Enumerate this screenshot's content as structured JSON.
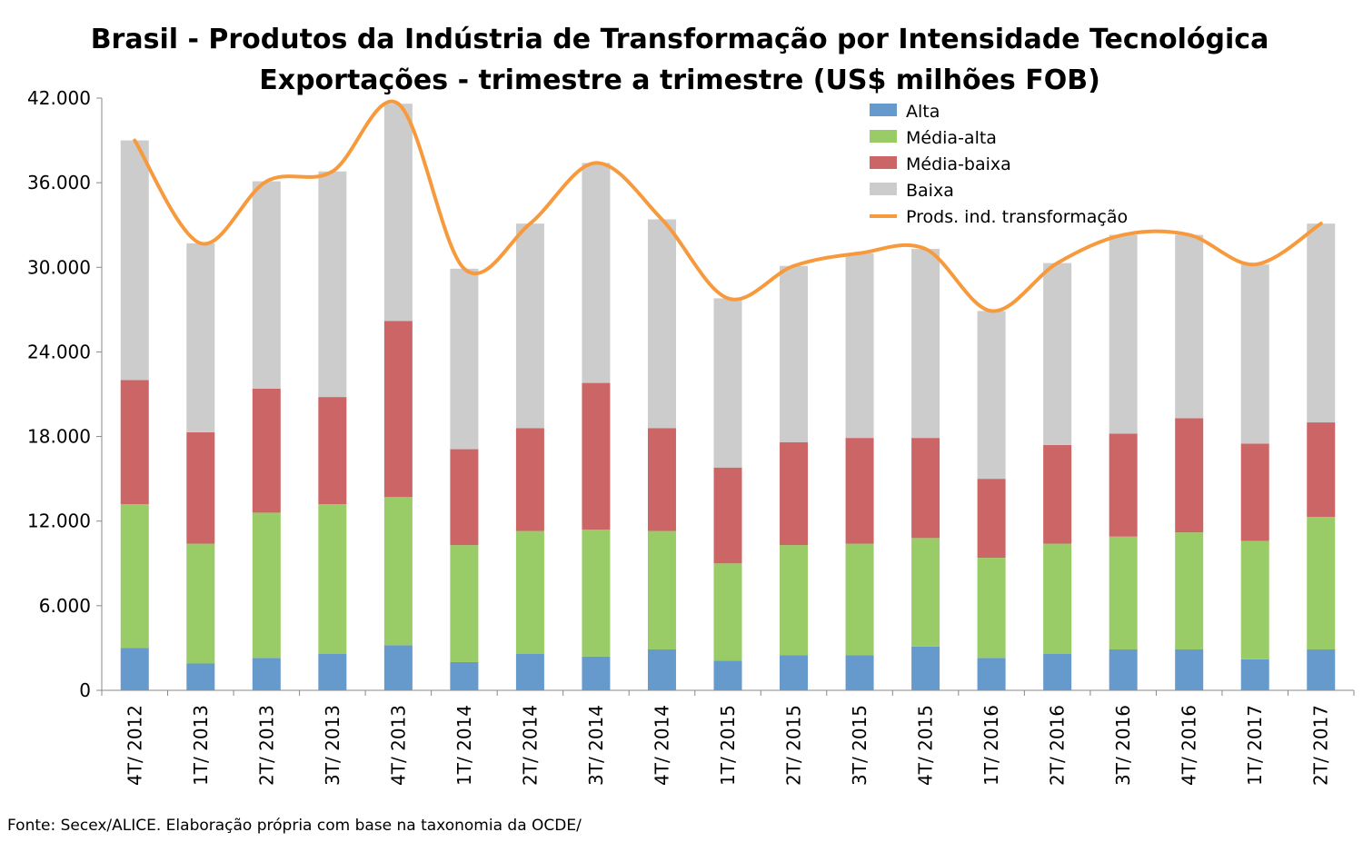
{
  "chart_data": {
    "type": "bar",
    "stacked": true,
    "title": "Brasil - Produtos da Indústria de Transformação por Intensidade Tecnológica",
    "subtitle": "Exportações - trimestre a trimestre (US$ milhões FOB)",
    "source": "Fonte: Secex/ALICE. Elaboração própria com base na taxonomia da OCDE/",
    "ylim": [
      0,
      42000
    ],
    "yticks": [
      0,
      6000,
      12000,
      18000,
      24000,
      30000,
      36000,
      42000
    ],
    "ytick_labels": [
      "0",
      "6.000",
      "12.000",
      "18.000",
      "24.000",
      "30.000",
      "36.000",
      "42.000"
    ],
    "grid": false,
    "legend_position": "top-right",
    "categories": [
      "4T/ 2012",
      "1T/ 2013",
      "2T/ 2013",
      "3T/ 2013",
      "4T/ 2013",
      "1T/ 2014",
      "2T/ 2014",
      "3T/ 2014",
      "4T/ 2014",
      "1T/ 2015",
      "2T/ 2015",
      "3T/ 2015",
      "4T/ 2015",
      "1T/ 2016",
      "2T/ 2016",
      "3T/ 2016",
      "4T/ 2016",
      "1T/ 2017",
      "2T/ 2017"
    ],
    "series": [
      {
        "name": "Alta",
        "color": "#6699cc",
        "values": [
          3000,
          1900,
          2300,
          2600,
          3200,
          2000,
          2600,
          2400,
          2900,
          2100,
          2500,
          2500,
          3100,
          2300,
          2600,
          2900,
          2900,
          2200,
          2900
        ]
      },
      {
        "name": "Média-alta",
        "color": "#99cc66",
        "values": [
          10200,
          8500,
          10300,
          10600,
          10500,
          8300,
          8700,
          9000,
          8400,
          6900,
          7800,
          7900,
          7700,
          7100,
          7800,
          8000,
          8300,
          8400,
          9400
        ]
      },
      {
        "name": "Média-baixa",
        "color": "#cc6666",
        "values": [
          8800,
          7900,
          8800,
          7600,
          12500,
          6800,
          7300,
          10400,
          7300,
          6800,
          7300,
          7500,
          7100,
          5600,
          7000,
          7300,
          8100,
          6900,
          6700
        ]
      },
      {
        "name": "Baixa",
        "color": "#cccccc",
        "values": [
          17000,
          13400,
          14700,
          16000,
          15400,
          12800,
          14500,
          15600,
          14800,
          12000,
          12500,
          13100,
          13400,
          11900,
          12900,
          14100,
          13000,
          12700,
          14100
        ]
      }
    ],
    "line_series": {
      "name": "Prods. ind. transformação",
      "color": "#f79a3e",
      "values": [
        39000,
        31700,
        36100,
        36800,
        41600,
        29900,
        33100,
        37400,
        33400,
        27800,
        30100,
        31000,
        31300,
        26900,
        30300,
        32300,
        32300,
        30200,
        33100
      ]
    }
  }
}
